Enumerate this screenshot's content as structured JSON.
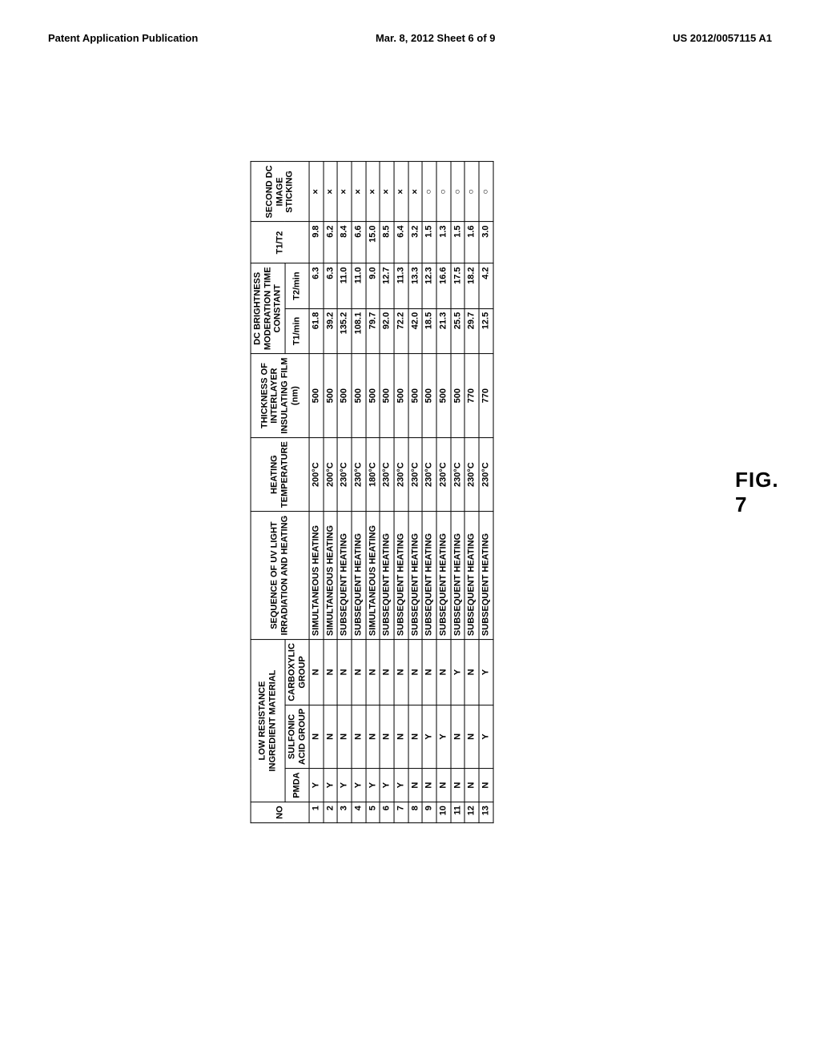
{
  "header": {
    "left": "Patent Application Publication",
    "center": "Mar. 8, 2012  Sheet 6 of 9",
    "right": "US 2012/0057115 A1"
  },
  "figure_title": "FIG. 7",
  "table": {
    "headers": {
      "no": "NO",
      "low_resistance": "LOW RESISTANCE\nINGREDIENT MATERIAL",
      "pmda": "PMDA",
      "sulfonic": "SULFONIC\nACID GROUP",
      "carboxylic": "CARBOXYLIC\nGROUP",
      "sequence": "SEQUENCE OF UV LIGHT\nIRRADIATION AND HEATING",
      "heating_temp": "HEATING\nTEMPERATURE",
      "thickness": "THICKNESS OF\nINTERLAYER\nINSULATING FILM\n(nm)",
      "dc_bright": "DC BRIGHTNESS\nMODERATION TIME\nCONSTANT",
      "t1min": "T1/min",
      "t2min": "T2/min",
      "t1t2": "T1/T2",
      "second_dc": "SECOND DC\nIMAGE\nSTICKING"
    },
    "rows": [
      {
        "no": "1",
        "pmda": "Y",
        "sulf": "N",
        "carb": "N",
        "seq": "SIMULTANEOUS HEATING",
        "temp": "200°C",
        "thick": "500",
        "t1": "61.8",
        "t2": "6.3",
        "t1t2": "9.8",
        "sdc": "×"
      },
      {
        "no": "2",
        "pmda": "Y",
        "sulf": "N",
        "carb": "N",
        "seq": "SIMULTANEOUS HEATING",
        "temp": "200°C",
        "thick": "500",
        "t1": "39.2",
        "t2": "6.3",
        "t1t2": "6.2",
        "sdc": "×"
      },
      {
        "no": "3",
        "pmda": "Y",
        "sulf": "N",
        "carb": "N",
        "seq": "SUBSEQUENT HEATING",
        "temp": "230°C",
        "thick": "500",
        "t1": "135.2",
        "t2": "11.0",
        "t1t2": "8.4",
        "sdc": "×"
      },
      {
        "no": "4",
        "pmda": "Y",
        "sulf": "N",
        "carb": "N",
        "seq": "SUBSEQUENT HEATING",
        "temp": "230°C",
        "thick": "500",
        "t1": "108.1",
        "t2": "11.0",
        "t1t2": "6.6",
        "sdc": "×"
      },
      {
        "no": "5",
        "pmda": "Y",
        "sulf": "N",
        "carb": "N",
        "seq": "SIMULTANEOUS HEATING",
        "temp": "180°C",
        "thick": "500",
        "t1": "79.7",
        "t2": "9.0",
        "t1t2": "15.0",
        "sdc": "×"
      },
      {
        "no": "6",
        "pmda": "Y",
        "sulf": "N",
        "carb": "N",
        "seq": "SUBSEQUENT HEATING",
        "temp": "230°C",
        "thick": "500",
        "t1": "92.0",
        "t2": "12.7",
        "t1t2": "8.5",
        "sdc": "×"
      },
      {
        "no": "7",
        "pmda": "Y",
        "sulf": "N",
        "carb": "N",
        "seq": "SUBSEQUENT HEATING",
        "temp": "230°C",
        "thick": "500",
        "t1": "72.2",
        "t2": "11.3",
        "t1t2": "6.4",
        "sdc": "×"
      },
      {
        "no": "8",
        "pmda": "N",
        "sulf": "N",
        "carb": "N",
        "seq": "SUBSEQUENT HEATING",
        "temp": "230°C",
        "thick": "500",
        "t1": "42.0",
        "t2": "13.3",
        "t1t2": "3.2",
        "sdc": "×"
      },
      {
        "no": "9",
        "pmda": "N",
        "sulf": "Y",
        "carb": "N",
        "seq": "SUBSEQUENT HEATING",
        "temp": "230°C",
        "thick": "500",
        "t1": "18.5",
        "t2": "12.3",
        "t1t2": "1.5",
        "sdc": "○"
      },
      {
        "no": "10",
        "pmda": "N",
        "sulf": "Y",
        "carb": "N",
        "seq": "SUBSEQUENT HEATING",
        "temp": "230°C",
        "thick": "500",
        "t1": "21.3",
        "t2": "16.6",
        "t1t2": "1.3",
        "sdc": "○"
      },
      {
        "no": "11",
        "pmda": "N",
        "sulf": "N",
        "carb": "Y",
        "seq": "SUBSEQUENT HEATING",
        "temp": "230°C",
        "thick": "500",
        "t1": "25.5",
        "t2": "17.5",
        "t1t2": "1.5",
        "sdc": "○"
      },
      {
        "no": "12",
        "pmda": "N",
        "sulf": "N",
        "carb": "N",
        "seq": "SUBSEQUENT HEATING",
        "temp": "230°C",
        "thick": "770",
        "t1": "29.7",
        "t2": "18.2",
        "t1t2": "1.6",
        "sdc": "○"
      },
      {
        "no": "13",
        "pmda": "N",
        "sulf": "Y",
        "carb": "Y",
        "seq": "SUBSEQUENT HEATING",
        "temp": "230°C",
        "thick": "770",
        "t1": "12.5",
        "t2": "4.2",
        "t1t2": "3.0",
        "sdc": "○"
      }
    ]
  }
}
